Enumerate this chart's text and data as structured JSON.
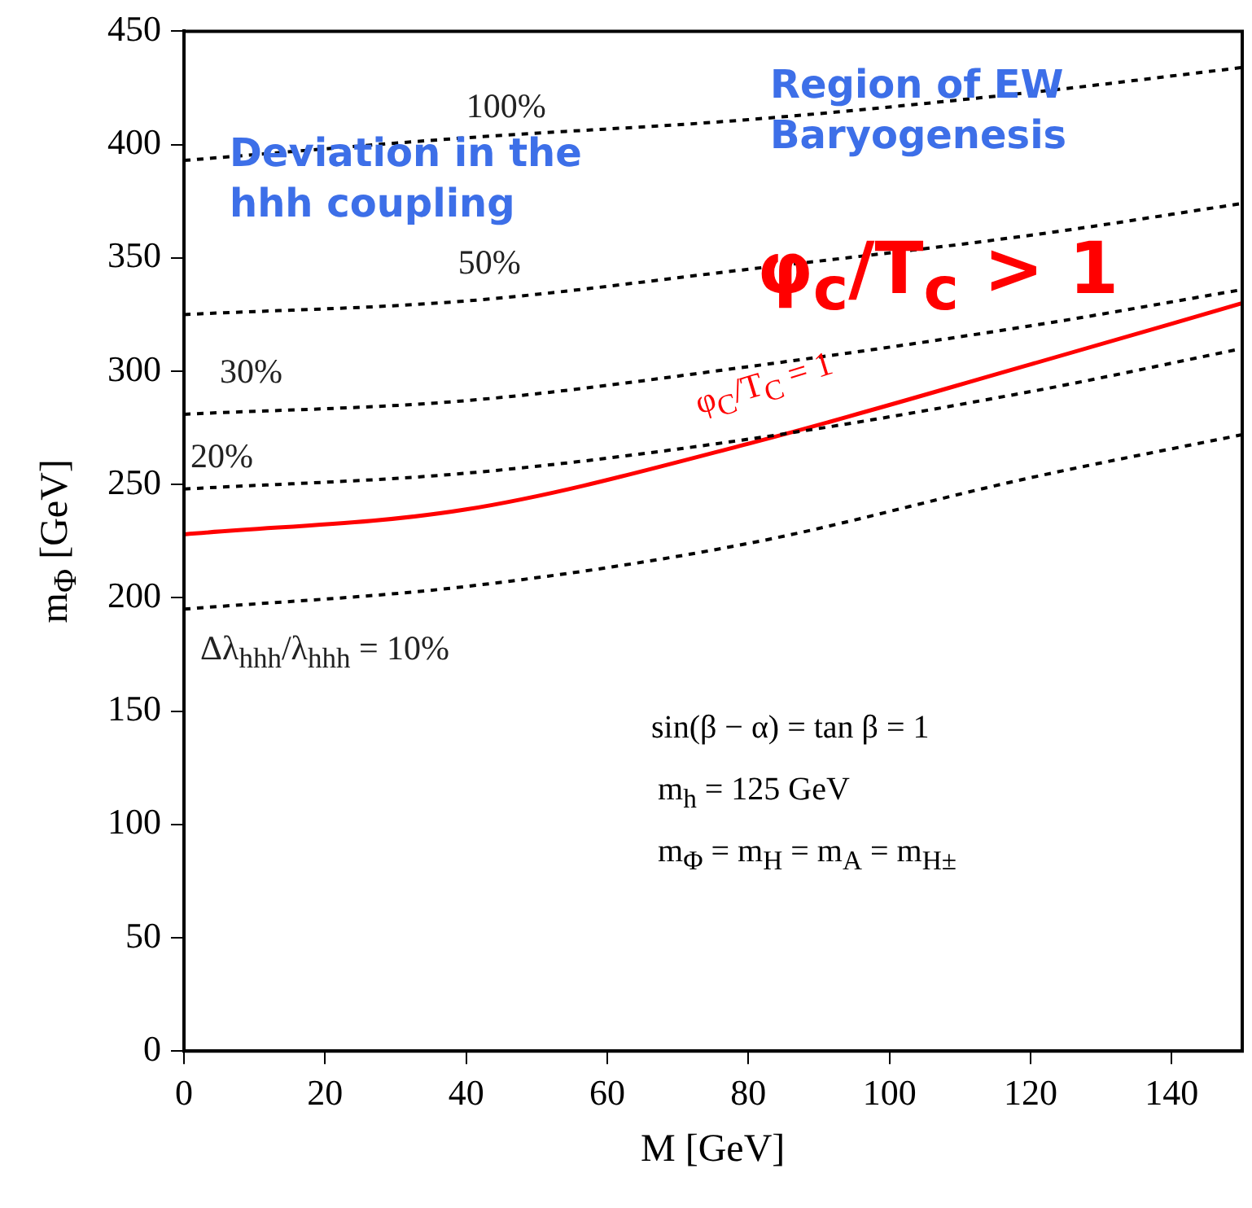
{
  "chart_data": {
    "type": "line",
    "xlabel": "M [GeV]",
    "ylabel": "m$_{Φ}$ [GeV]",
    "x": [
      0,
      40,
      80,
      120,
      150
    ],
    "series": [
      {
        "name": "100%",
        "color": "#000000",
        "line_style": "dotted",
        "values": [
          393,
          403,
          411,
          423,
          434
        ]
      },
      {
        "name": "50%",
        "color": "#000000",
        "line_style": "dotted",
        "values": [
          325,
          331,
          345,
          360,
          374
        ]
      },
      {
        "name": "30%",
        "color": "#000000",
        "line_style": "dotted",
        "values": [
          281,
          287,
          302,
          320,
          336
        ]
      },
      {
        "name": "20%",
        "color": "#000000",
        "line_style": "dotted",
        "values": [
          248,
          255,
          270,
          291,
          310
        ]
      },
      {
        "name": "Δλ$_{hhh}$/λ$_{hhh}$ = 10%",
        "color": "#000000",
        "line_style": "dotted",
        "values": [
          195,
          205,
          224,
          253,
          272
        ]
      },
      {
        "name": "φ$_{C}$/T$_{C}$ = 1",
        "color": "#ff0000",
        "line_style": "solid",
        "values": [
          228,
          239,
          268,
          303,
          330
        ]
      }
    ],
    "xlim": [
      0,
      150
    ],
    "xticks": [
      0,
      20,
      40,
      60,
      80,
      100,
      120,
      140
    ],
    "ylim": [
      0,
      450
    ],
    "yticks": [
      0,
      50,
      100,
      150,
      200,
      250,
      300,
      350,
      400,
      450
    ],
    "grid": false,
    "legend": false,
    "marker": "none",
    "annotations": [
      "Deviation in the hhh coupling",
      "Region of EW Baryogenesis",
      "φ$_{c}$/T$_{c}$ > 1",
      "sin(β − α) = tan β = 1",
      "m$_{h}$ = 125 GeV",
      "m$_{Φ}$ = m$_{H}$ = m$_{A}$ = m$_{H±}$"
    ]
  }
}
